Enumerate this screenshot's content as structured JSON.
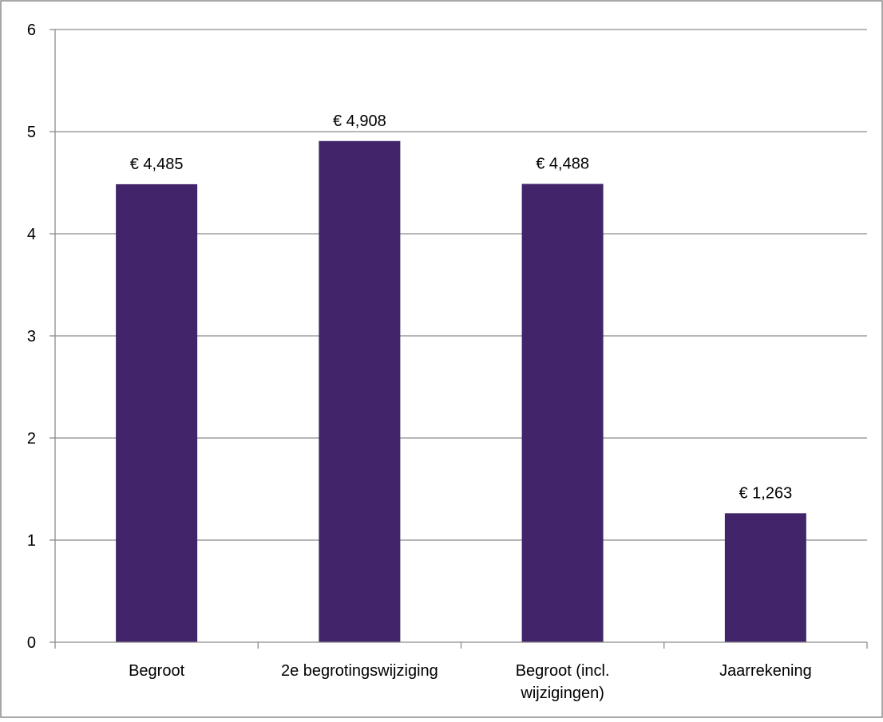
{
  "chart_data": {
    "type": "bar",
    "categories": [
      [
        "Begroot"
      ],
      [
        "2e begrotingswijziging"
      ],
      [
        "Begroot (incl.",
        "wijzigingen)"
      ],
      [
        "Jaarrekening"
      ]
    ],
    "values": [
      4.485,
      4.908,
      4.488,
      1.263
    ],
    "data_labels": [
      "€ 4,485",
      "€ 4,908",
      "€ 4,488",
      "€ 1,263"
    ],
    "y_ticks": [
      "0",
      "1",
      "2",
      "3",
      "4",
      "5",
      "6"
    ],
    "ylim": [
      0,
      6
    ],
    "title": "",
    "xlabel": "",
    "ylabel": "",
    "grid": true,
    "legend": "none",
    "bar_color": "#42246a",
    "grid_color": "#8c8c8c",
    "border_color": "#8c8c8c"
  }
}
